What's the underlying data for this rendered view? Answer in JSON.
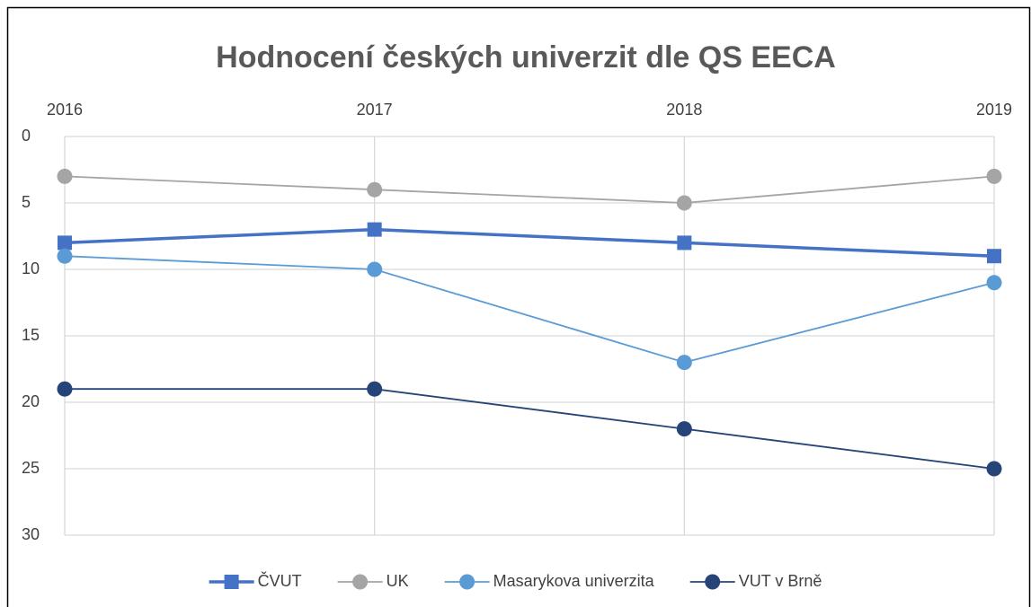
{
  "chart_data": {
    "type": "line",
    "title": "Hodnocení českých univerzit dle QS EECA",
    "categories": [
      "2016",
      "2017",
      "2018",
      "2019"
    ],
    "series": [
      {
        "name": "ČVUT",
        "color": "#4472c4",
        "marker": "square",
        "values": [
          8,
          7,
          8,
          9
        ]
      },
      {
        "name": "UK",
        "color": "#a5a5a5",
        "marker": "circle",
        "values": [
          3,
          4,
          5,
          3
        ]
      },
      {
        "name": "Masarykova univerzita",
        "color": "#5b9bd5",
        "marker": "circle",
        "values": [
          9,
          10,
          17,
          11
        ]
      },
      {
        "name": "VUT v Brně",
        "color": "#264478",
        "marker": "circle",
        "values": [
          19,
          19,
          22,
          25
        ]
      }
    ],
    "ylim": [
      0,
      30
    ],
    "yticks": [
      0,
      5,
      10,
      15,
      20,
      25,
      30
    ],
    "y_inverted": true,
    "grid": true,
    "legend": "bottom"
  }
}
